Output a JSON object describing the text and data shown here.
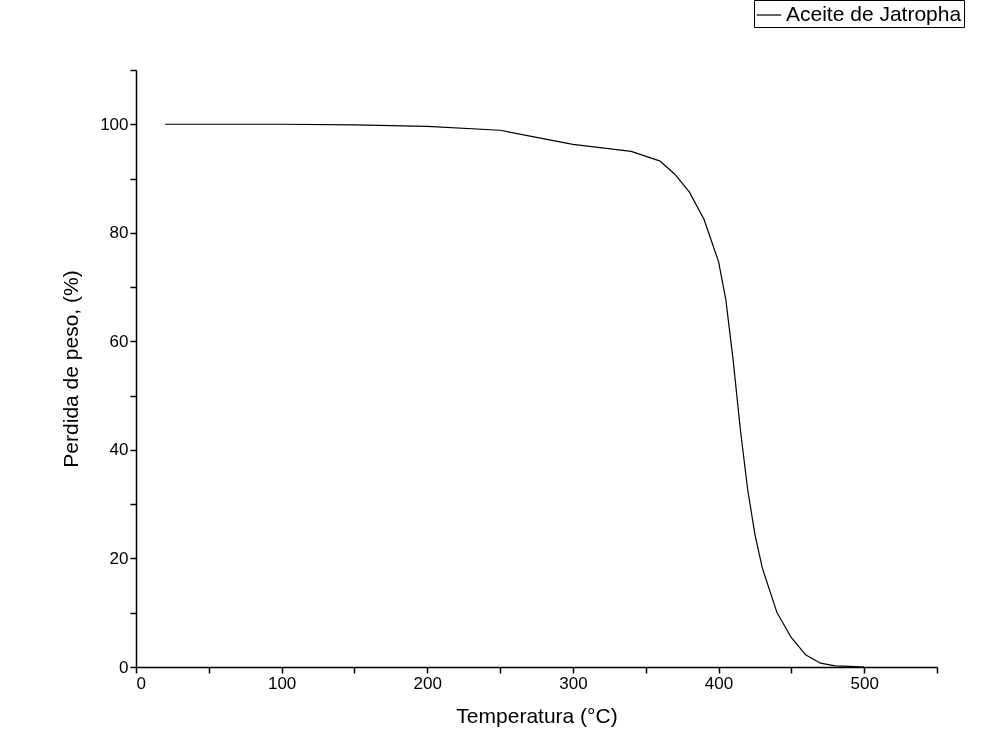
{
  "chart_data": {
    "type": "line",
    "xlabel": "Temperatura (°C)",
    "ylabel": "Perdida de peso, (%)",
    "xlim": [
      0,
      550
    ],
    "ylim": [
      0,
      110
    ],
    "xticks": [
      0,
      {
        "value": 50,
        "label": null
      },
      100,
      {
        "value": 150,
        "label": null
      },
      200,
      {
        "value": 250,
        "label": null
      },
      300,
      {
        "value": 350,
        "label": null
      },
      400,
      {
        "value": 450,
        "label": null
      },
      500,
      {
        "value": 550,
        "label": null
      }
    ],
    "yticks": [
      0,
      {
        "value": 10,
        "label": null
      },
      20,
      {
        "value": 30,
        "label": null
      },
      40,
      {
        "value": 50,
        "label": null
      },
      60,
      {
        "value": 70,
        "label": null
      },
      80,
      {
        "value": 90,
        "label": null
      },
      100,
      {
        "value": 110,
        "label": null
      }
    ],
    "grid": false,
    "legend": "top right",
    "marker": "none",
    "line_style": "solid",
    "series": [
      {
        "name": "Aceite de Jatropha",
        "color": "#000000",
        "x": [
          20,
          100,
          150,
          200,
          250,
          300,
          340,
          360,
          370,
          380,
          390,
          400,
          405,
          410,
          415,
          420,
          425,
          430,
          440,
          450,
          460,
          470,
          480,
          490,
          500
        ],
        "values": [
          100,
          100,
          99.9,
          99.6,
          98.9,
          96.3,
          95,
          93.2,
          90.8,
          87.5,
          82.5,
          74.7,
          67.7,
          56.6,
          43.7,
          32.7,
          24.4,
          18.3,
          10.1,
          5.4,
          2.2,
          0.7,
          0.2,
          0.1,
          0
        ]
      }
    ]
  }
}
